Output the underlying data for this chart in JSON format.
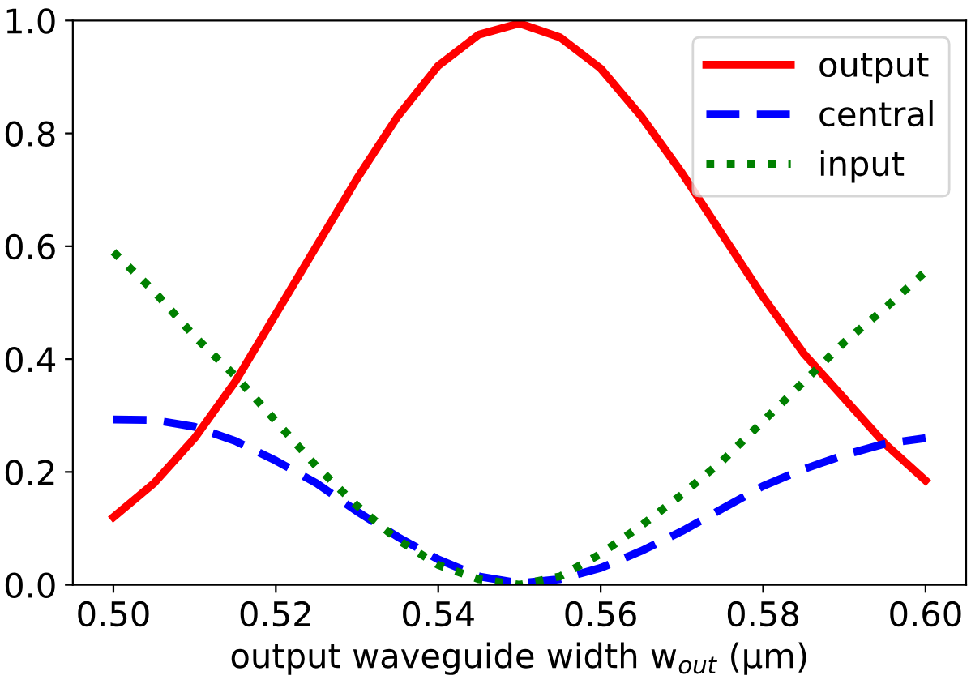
{
  "chart_data": {
    "type": "line",
    "xlabel": "output waveguide width w$_{out}$ (μm)",
    "x": [
      0.5,
      0.505,
      0.51,
      0.515,
      0.52,
      0.525,
      0.53,
      0.535,
      0.54,
      0.545,
      0.55,
      0.555,
      0.56,
      0.565,
      0.57,
      0.575,
      0.58,
      0.585,
      0.59,
      0.595,
      0.6
    ],
    "series": [
      {
        "name": "output",
        "color": "#ff0000",
        "line_style": "solid",
        "values": [
          0.12,
          0.18,
          0.26,
          0.36,
          0.48,
          0.6,
          0.72,
          0.83,
          0.92,
          0.975,
          0.995,
          0.97,
          0.915,
          0.83,
          0.73,
          0.62,
          0.51,
          0.41,
          0.33,
          0.25,
          0.185
        ]
      },
      {
        "name": "central",
        "color": "#0000ff",
        "line_style": "dashed",
        "values": [
          0.293,
          0.292,
          0.28,
          0.255,
          0.22,
          0.18,
          0.13,
          0.085,
          0.045,
          0.015,
          0.003,
          0.01,
          0.03,
          0.06,
          0.095,
          0.135,
          0.175,
          0.205,
          0.23,
          0.25,
          0.26
        ]
      },
      {
        "name": "input",
        "color": "#008000",
        "line_style": "dotted",
        "values": [
          0.59,
          0.52,
          0.44,
          0.37,
          0.29,
          0.21,
          0.14,
          0.08,
          0.035,
          0.01,
          0.0,
          0.015,
          0.055,
          0.105,
          0.16,
          0.22,
          0.29,
          0.36,
          0.43,
          0.49,
          0.555
        ]
      }
    ],
    "xlim": [
      0.495,
      0.605
    ],
    "ylim": [
      0,
      1
    ],
    "xticks": [
      {
        "value": 0.5,
        "label": "0.50"
      },
      {
        "value": 0.52,
        "label": "0.52"
      },
      {
        "value": 0.54,
        "label": "0.54"
      },
      {
        "value": 0.56,
        "label": "0.56"
      },
      {
        "value": 0.58,
        "label": "0.58"
      },
      {
        "value": 0.6,
        "label": "0.60"
      }
    ],
    "yticks": [
      {
        "value": 0,
        "label": "0.0"
      },
      {
        "value": 0.2,
        "label": "0.2"
      },
      {
        "value": 0.4,
        "label": "0.4"
      },
      {
        "value": 0.6,
        "label": "0.6"
      },
      {
        "value": 0.8,
        "label": "0.8"
      },
      {
        "value": 1,
        "label": "1.0"
      }
    ],
    "grid": false,
    "legend": "top right"
  }
}
